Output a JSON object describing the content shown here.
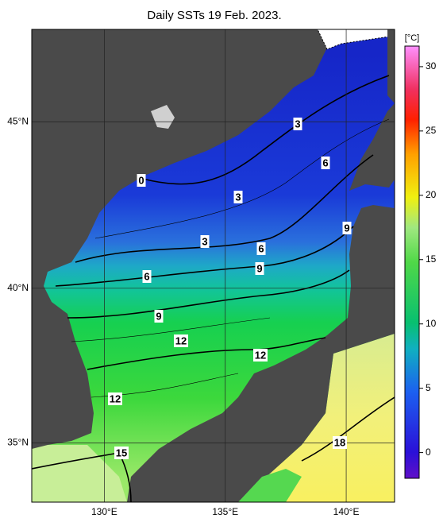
{
  "title": "Daily SSTs 19 Feb. 2023.",
  "map": {
    "lon_range": [
      127,
      142
    ],
    "lat_range": [
      33,
      47.6
    ],
    "lon_ticks": [
      {
        "value": 130,
        "label": "130°E"
      },
      {
        "value": 135,
        "label": "135°E"
      },
      {
        "value": 140,
        "label": "140°E"
      }
    ],
    "lat_ticks": [
      {
        "value": 35,
        "label": "35°N"
      },
      {
        "value": 40,
        "label": "40°N"
      },
      {
        "value": 45,
        "label": "45°N"
      }
    ]
  },
  "colorbar": {
    "label": "[°C]",
    "range": [
      -2,
      31.6
    ],
    "ticks": [
      0,
      5,
      10,
      15,
      20,
      25,
      30
    ]
  },
  "contour_labels": [
    3,
    6,
    0,
    3,
    9,
    3,
    6,
    9,
    6,
    9,
    12,
    12,
    12,
    15,
    18
  ]
}
